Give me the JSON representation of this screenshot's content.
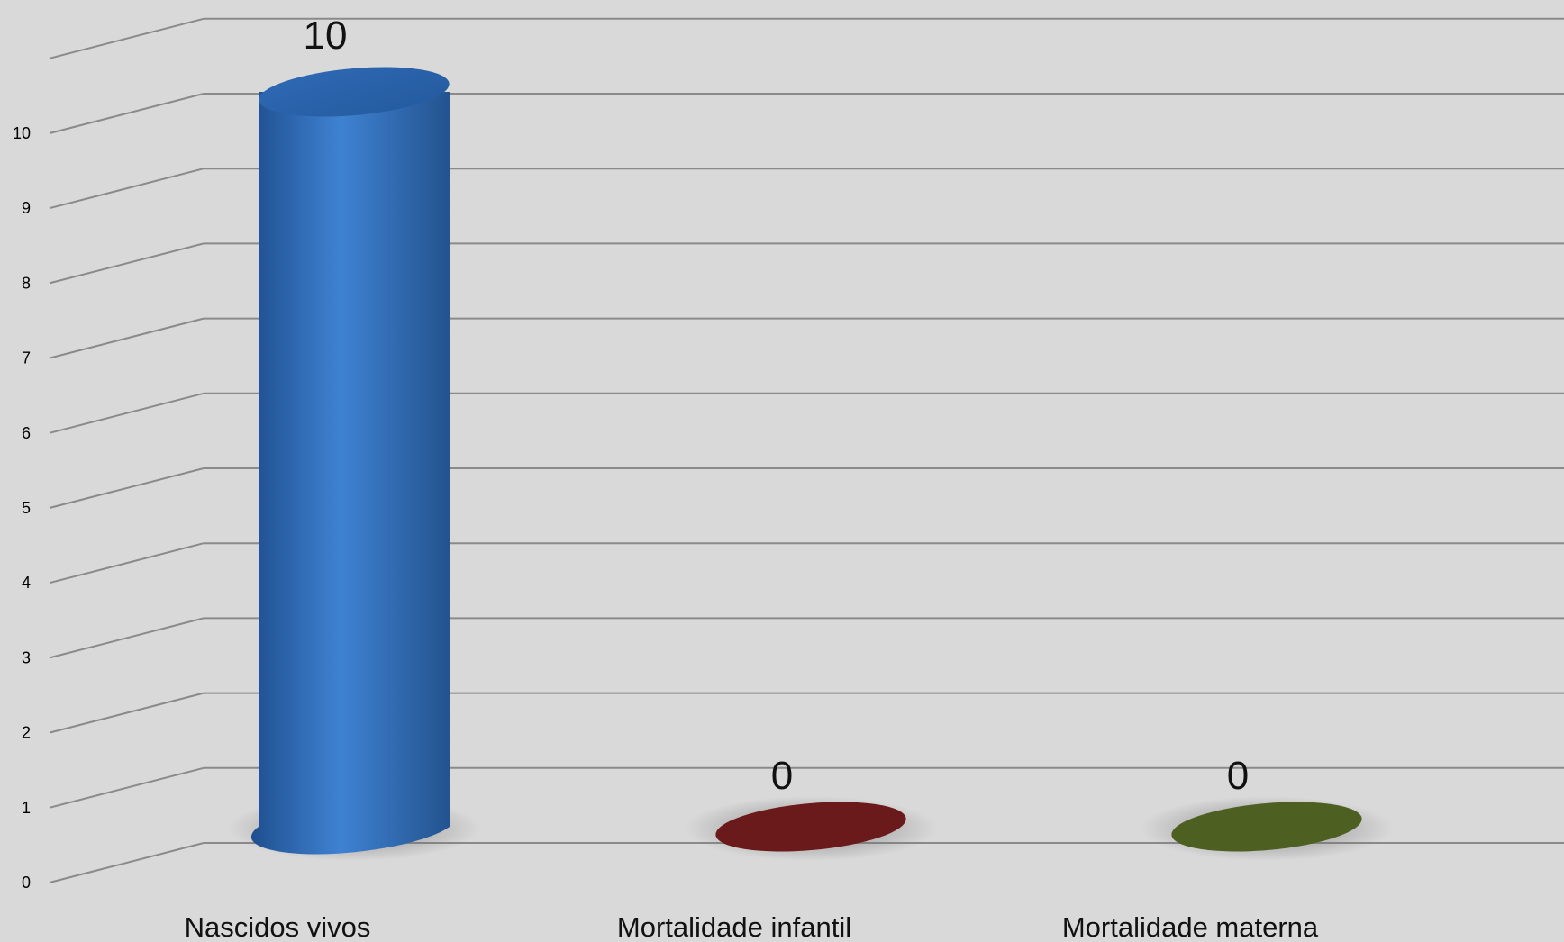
{
  "chart_data": {
    "type": "bar",
    "subtype": "3d-cylinder",
    "categories": [
      "Nascidos vivos",
      "Mortalidade infantil",
      "Mortalidade materna"
    ],
    "values": [
      10,
      0,
      0
    ],
    "data_labels": [
      "10",
      "0",
      "0"
    ],
    "ylim": [
      0,
      11
    ],
    "yticks": [
      0,
      1,
      2,
      3,
      4,
      5,
      6,
      7,
      8,
      9,
      10
    ],
    "grid": true,
    "legend": "none",
    "colors": [
      "#3a78c2",
      "#6a1a1a",
      "#4e5f22"
    ],
    "background": "#d9d9d9"
  }
}
